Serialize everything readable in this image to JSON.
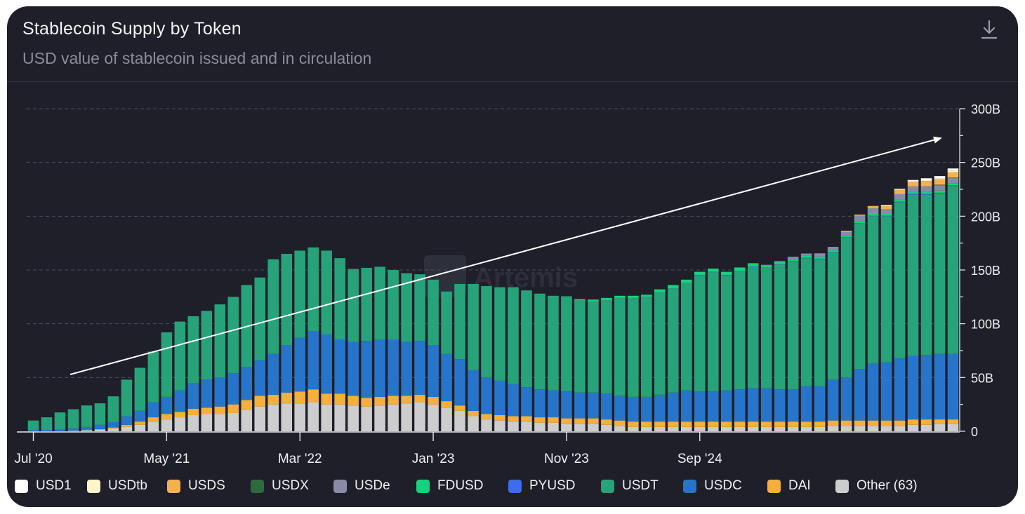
{
  "header": {
    "title": "Stablecoin Supply by Token",
    "subtitle": "USD value of stablecoin issued and in circulation",
    "watermark": "Artemis",
    "download_icon": "download-icon"
  },
  "legend": [
    {
      "label": "USD1",
      "color": "#ffffff"
    },
    {
      "label": "USDtb",
      "color": "#fff5c7"
    },
    {
      "label": "USDS",
      "color": "#f6b14e"
    },
    {
      "label": "USDX",
      "color": "#2e6b3c"
    },
    {
      "label": "USDe",
      "color": "#8a8aa6"
    },
    {
      "label": "FDUSD",
      "color": "#16d17d"
    },
    {
      "label": "PYUSD",
      "color": "#3d6ee8"
    },
    {
      "label": "USDT",
      "color": "#27a37a"
    },
    {
      "label": "USDC",
      "color": "#2775ca"
    },
    {
      "label": "DAI",
      "color": "#f4af3c"
    },
    {
      "label": "Other (63)",
      "color": "#cdcdcd"
    }
  ],
  "chart_data": {
    "type": "bar",
    "stacked": true,
    "unit": "B",
    "ylim": [
      0,
      300
    ],
    "yticks": [
      "0",
      "50B",
      "100B",
      "150B",
      "200B",
      "250B",
      "300B"
    ],
    "xtick_labels": [
      {
        "label": "Jul '20",
        "index": 0
      },
      {
        "label": "May '21",
        "index": 10
      },
      {
        "label": "Mar '22",
        "index": 20
      },
      {
        "label": "Jan '23",
        "index": 30
      },
      {
        "label": "Nov '23",
        "index": 40
      },
      {
        "label": "Sep '24",
        "index": 50
      }
    ],
    "grid": true,
    "legend_position": "bottom",
    "annotation": "upward trend arrow",
    "series": [
      {
        "name": "Other (63)",
        "color": "#cdcdcd",
        "values": [
          0,
          0,
          0,
          0.5,
          1,
          1.5,
          2.5,
          4,
          6,
          9,
          11,
          13,
          15,
          16,
          16,
          17,
          20,
          23,
          25,
          26,
          26,
          27,
          25,
          25,
          24,
          23,
          24,
          25,
          26,
          27,
          25,
          22,
          19,
          14,
          11,
          10,
          9,
          9,
          8,
          8,
          7,
          7,
          7,
          6,
          5,
          4,
          4,
          4,
          4,
          4,
          4,
          4,
          4,
          4,
          4,
          4,
          4,
          4,
          4,
          4,
          5,
          5,
          5,
          5,
          5,
          5,
          6,
          6,
          7,
          7
        ]
      },
      {
        "name": "DAI",
        "color": "#f4af3c",
        "values": [
          0,
          0,
          0,
          0,
          0,
          0.5,
          1,
          2,
          3,
          4,
          5,
          5,
          6,
          6,
          7,
          8,
          9,
          10,
          9,
          10,
          11,
          12,
          10,
          10,
          9,
          8,
          8,
          8,
          7,
          7,
          7,
          6,
          5,
          5,
          5,
          5,
          5,
          5,
          5,
          5,
          5,
          5,
          5,
          5,
          5,
          5,
          5,
          5,
          5,
          5,
          5,
          5,
          5,
          5,
          5,
          5,
          5,
          5,
          5,
          5,
          5,
          5,
          5,
          5,
          5,
          5,
          5,
          5,
          4,
          4
        ]
      },
      {
        "name": "USDC",
        "color": "#2775ca",
        "values": [
          1,
          1,
          1.5,
          2,
          3,
          4,
          5,
          8,
          10,
          14,
          16,
          20,
          24,
          26,
          27,
          29,
          31,
          33,
          38,
          44,
          50,
          54,
          55,
          50,
          50,
          53,
          53,
          52,
          50,
          50,
          48,
          44,
          43,
          38,
          34,
          32,
          30,
          27,
          26,
          25,
          25,
          24,
          24,
          24,
          23,
          23,
          23,
          25,
          27,
          29,
          28,
          28,
          29,
          30,
          31,
          31,
          30,
          30,
          33,
          33,
          38,
          40,
          48,
          53,
          54,
          58,
          59,
          60,
          61,
          61
        ]
      },
      {
        "name": "USDT",
        "color": "#27a37a",
        "values": [
          9,
          12,
          16,
          18,
          20,
          20,
          24,
          34,
          40,
          47,
          60,
          64,
          62,
          64,
          68,
          71,
          76,
          77,
          88,
          85,
          81,
          78,
          78,
          76,
          68,
          68,
          68,
          65,
          64,
          62,
          61,
          58,
          70,
          80,
          85,
          87,
          90,
          90,
          89,
          88,
          88,
          86,
          85,
          87,
          91,
          92,
          93,
          95,
          97,
          100,
          108,
          111,
          107,
          110,
          113,
          112,
          116,
          119,
          119,
          118,
          118,
          130,
          135,
          137,
          136,
          145,
          150,
          149,
          149,
          156
        ]
      },
      {
        "name": "PYUSD",
        "color": "#3d6ee8",
        "values": [
          0,
          0,
          0,
          0,
          0,
          0,
          0,
          0,
          0,
          0,
          0,
          0,
          0,
          0,
          0,
          0,
          0,
          0,
          0,
          0,
          0,
          0,
          0,
          0,
          0,
          0,
          0,
          0,
          0,
          0,
          0,
          0,
          0,
          0,
          0,
          0,
          0,
          0,
          0,
          0,
          0,
          0,
          0,
          0,
          0,
          0,
          0,
          0,
          0,
          0,
          0.3,
          0.3,
          0.3,
          0.3,
          0.3,
          0.3,
          0.3,
          0.3,
          0.3,
          0.5,
          0.5,
          0.5,
          0.5,
          0.5,
          0.5,
          0.5,
          0.7,
          0.8,
          0.8,
          0.9
        ]
      },
      {
        "name": "FDUSD",
        "color": "#16d17d",
        "values": [
          0,
          0,
          0,
          0,
          0,
          0,
          0,
          0,
          0,
          0,
          0,
          0,
          0,
          0,
          0,
          0,
          0,
          0,
          0,
          0,
          0,
          0,
          0,
          0,
          0,
          0,
          0,
          0,
          0,
          0,
          0,
          0,
          0,
          0,
          0,
          0,
          0,
          0,
          0,
          0,
          0.5,
          1,
          1.5,
          2,
          2,
          2,
          2,
          3,
          3,
          3,
          3,
          3,
          3,
          3,
          3,
          2,
          2,
          2,
          2,
          2,
          2,
          2,
          2,
          2,
          2,
          2,
          2,
          2,
          2,
          1.5
        ]
      },
      {
        "name": "USDe",
        "color": "#8a8aa6",
        "values": [
          0,
          0,
          0,
          0,
          0,
          0,
          0,
          0,
          0,
          0,
          0,
          0,
          0,
          0,
          0,
          0,
          0,
          0,
          0,
          0,
          0,
          0,
          0,
          0,
          0,
          0,
          0,
          0,
          0,
          0,
          0,
          0,
          0,
          0,
          0,
          0,
          0,
          0,
          0,
          0,
          0,
          0,
          0,
          0,
          0,
          0,
          0,
          0,
          0,
          0,
          0,
          0,
          0,
          0,
          0,
          0.5,
          1,
          2,
          2,
          3,
          3,
          3,
          5,
          5,
          4,
          5,
          5,
          5,
          5,
          5
        ]
      },
      {
        "name": "USDX",
        "color": "#2e6b3c",
        "values": [
          0,
          0,
          0,
          0,
          0,
          0,
          0,
          0,
          0,
          0,
          0,
          0,
          0,
          0,
          0,
          0,
          0,
          0,
          0,
          0,
          0,
          0,
          0,
          0,
          0,
          0,
          0,
          0,
          0,
          0,
          0,
          0,
          0,
          0,
          0,
          0,
          0,
          0,
          0,
          0,
          0,
          0,
          0,
          0,
          0,
          0,
          0,
          0,
          0,
          0,
          0,
          0,
          0,
          0,
          0,
          0,
          0,
          0,
          0,
          0,
          0,
          0,
          0,
          0,
          0,
          0,
          0,
          0,
          0.5,
          0.5
        ]
      },
      {
        "name": "USDS",
        "color": "#f6b14e",
        "values": [
          0,
          0,
          0,
          0,
          0,
          0,
          0,
          0,
          0,
          0,
          0,
          0,
          0,
          0,
          0,
          0,
          0,
          0,
          0,
          0,
          0,
          0,
          0,
          0,
          0,
          0,
          0,
          0,
          0,
          0,
          0,
          0,
          0,
          0,
          0,
          0,
          0,
          0,
          0,
          0,
          0,
          0,
          0,
          0,
          0,
          0,
          0,
          0,
          0,
          0,
          0,
          0,
          0,
          0,
          0,
          0,
          0,
          0,
          0,
          0,
          0,
          1,
          1,
          2,
          3,
          4,
          4,
          5,
          5,
          5
        ]
      },
      {
        "name": "USDtb",
        "color": "#fff5c7",
        "values": [
          0,
          0,
          0,
          0,
          0,
          0,
          0,
          0,
          0,
          0,
          0,
          0,
          0,
          0,
          0,
          0,
          0,
          0,
          0,
          0,
          0,
          0,
          0,
          0,
          0,
          0,
          0,
          0,
          0,
          0,
          0,
          0,
          0,
          0,
          0,
          0,
          0,
          0,
          0,
          0,
          0,
          0,
          0,
          0,
          0,
          0,
          0,
          0,
          0,
          0,
          0,
          0,
          0,
          0,
          0,
          0,
          0,
          0,
          0,
          0,
          0,
          0,
          0,
          0,
          1,
          1,
          1,
          1,
          1,
          1.5
        ]
      },
      {
        "name": "USD1",
        "color": "#ffffff",
        "values": [
          0,
          0,
          0,
          0,
          0,
          0,
          0,
          0,
          0,
          0,
          0,
          0,
          0,
          0,
          0,
          0,
          0,
          0,
          0,
          0,
          0,
          0,
          0,
          0,
          0,
          0,
          0,
          0,
          0,
          0,
          0,
          0,
          0,
          0,
          0,
          0,
          0,
          0,
          0,
          0,
          0,
          0,
          0,
          0,
          0,
          0,
          0,
          0,
          0,
          0,
          0,
          0,
          0,
          0,
          0,
          0,
          0,
          0,
          0,
          0,
          0,
          0,
          0,
          0,
          0,
          0,
          1,
          1.5,
          2,
          2
        ]
      }
    ]
  }
}
